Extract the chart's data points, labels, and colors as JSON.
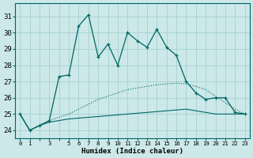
{
  "xlabel": "Humidex (Indice chaleur)",
  "bg_color": "#cce8e8",
  "grid_color": "#aad4d4",
  "line_color": "#006666",
  "ylim": [
    23.5,
    31.8
  ],
  "xlim": [
    -0.5,
    23.5
  ],
  "yticks": [
    24,
    25,
    26,
    27,
    28,
    29,
    30,
    31
  ],
  "xtick_labels": [
    "0",
    "1",
    "",
    "3",
    "",
    "5",
    "6",
    "7",
    "8",
    "9",
    "10",
    "11",
    "12",
    "13",
    "14",
    "15",
    "16",
    "17",
    "18",
    "19",
    "20",
    "21",
    "22",
    "23"
  ],
  "hours": [
    0,
    1,
    2,
    3,
    4,
    5,
    6,
    7,
    8,
    9,
    10,
    11,
    12,
    13,
    14,
    15,
    16,
    17,
    18,
    19,
    20,
    21,
    22,
    23
  ],
  "humidex": [
    25.0,
    24.0,
    24.3,
    24.6,
    27.3,
    27.4,
    30.4,
    31.1,
    28.5,
    29.3,
    28.0,
    30.0,
    29.5,
    29.1,
    30.2,
    29.1,
    28.6,
    27.0,
    26.3,
    25.9,
    26.0,
    26.0,
    25.1,
    25.0
  ],
  "diag_line": [
    25.0,
    24.0,
    24.3,
    24.6,
    24.8,
    25.0,
    25.3,
    25.6,
    25.9,
    26.1,
    26.3,
    26.5,
    26.6,
    26.7,
    26.8,
    26.85,
    26.9,
    26.85,
    26.7,
    26.5,
    26.1,
    25.7,
    25.3,
    25.0
  ],
  "flat_line": [
    25.0,
    24.0,
    24.3,
    24.5,
    24.6,
    24.7,
    24.75,
    24.8,
    24.85,
    24.9,
    24.95,
    25.0,
    25.05,
    25.1,
    25.15,
    25.2,
    25.25,
    25.3,
    25.2,
    25.1,
    25.0,
    25.0,
    25.0,
    25.0
  ]
}
